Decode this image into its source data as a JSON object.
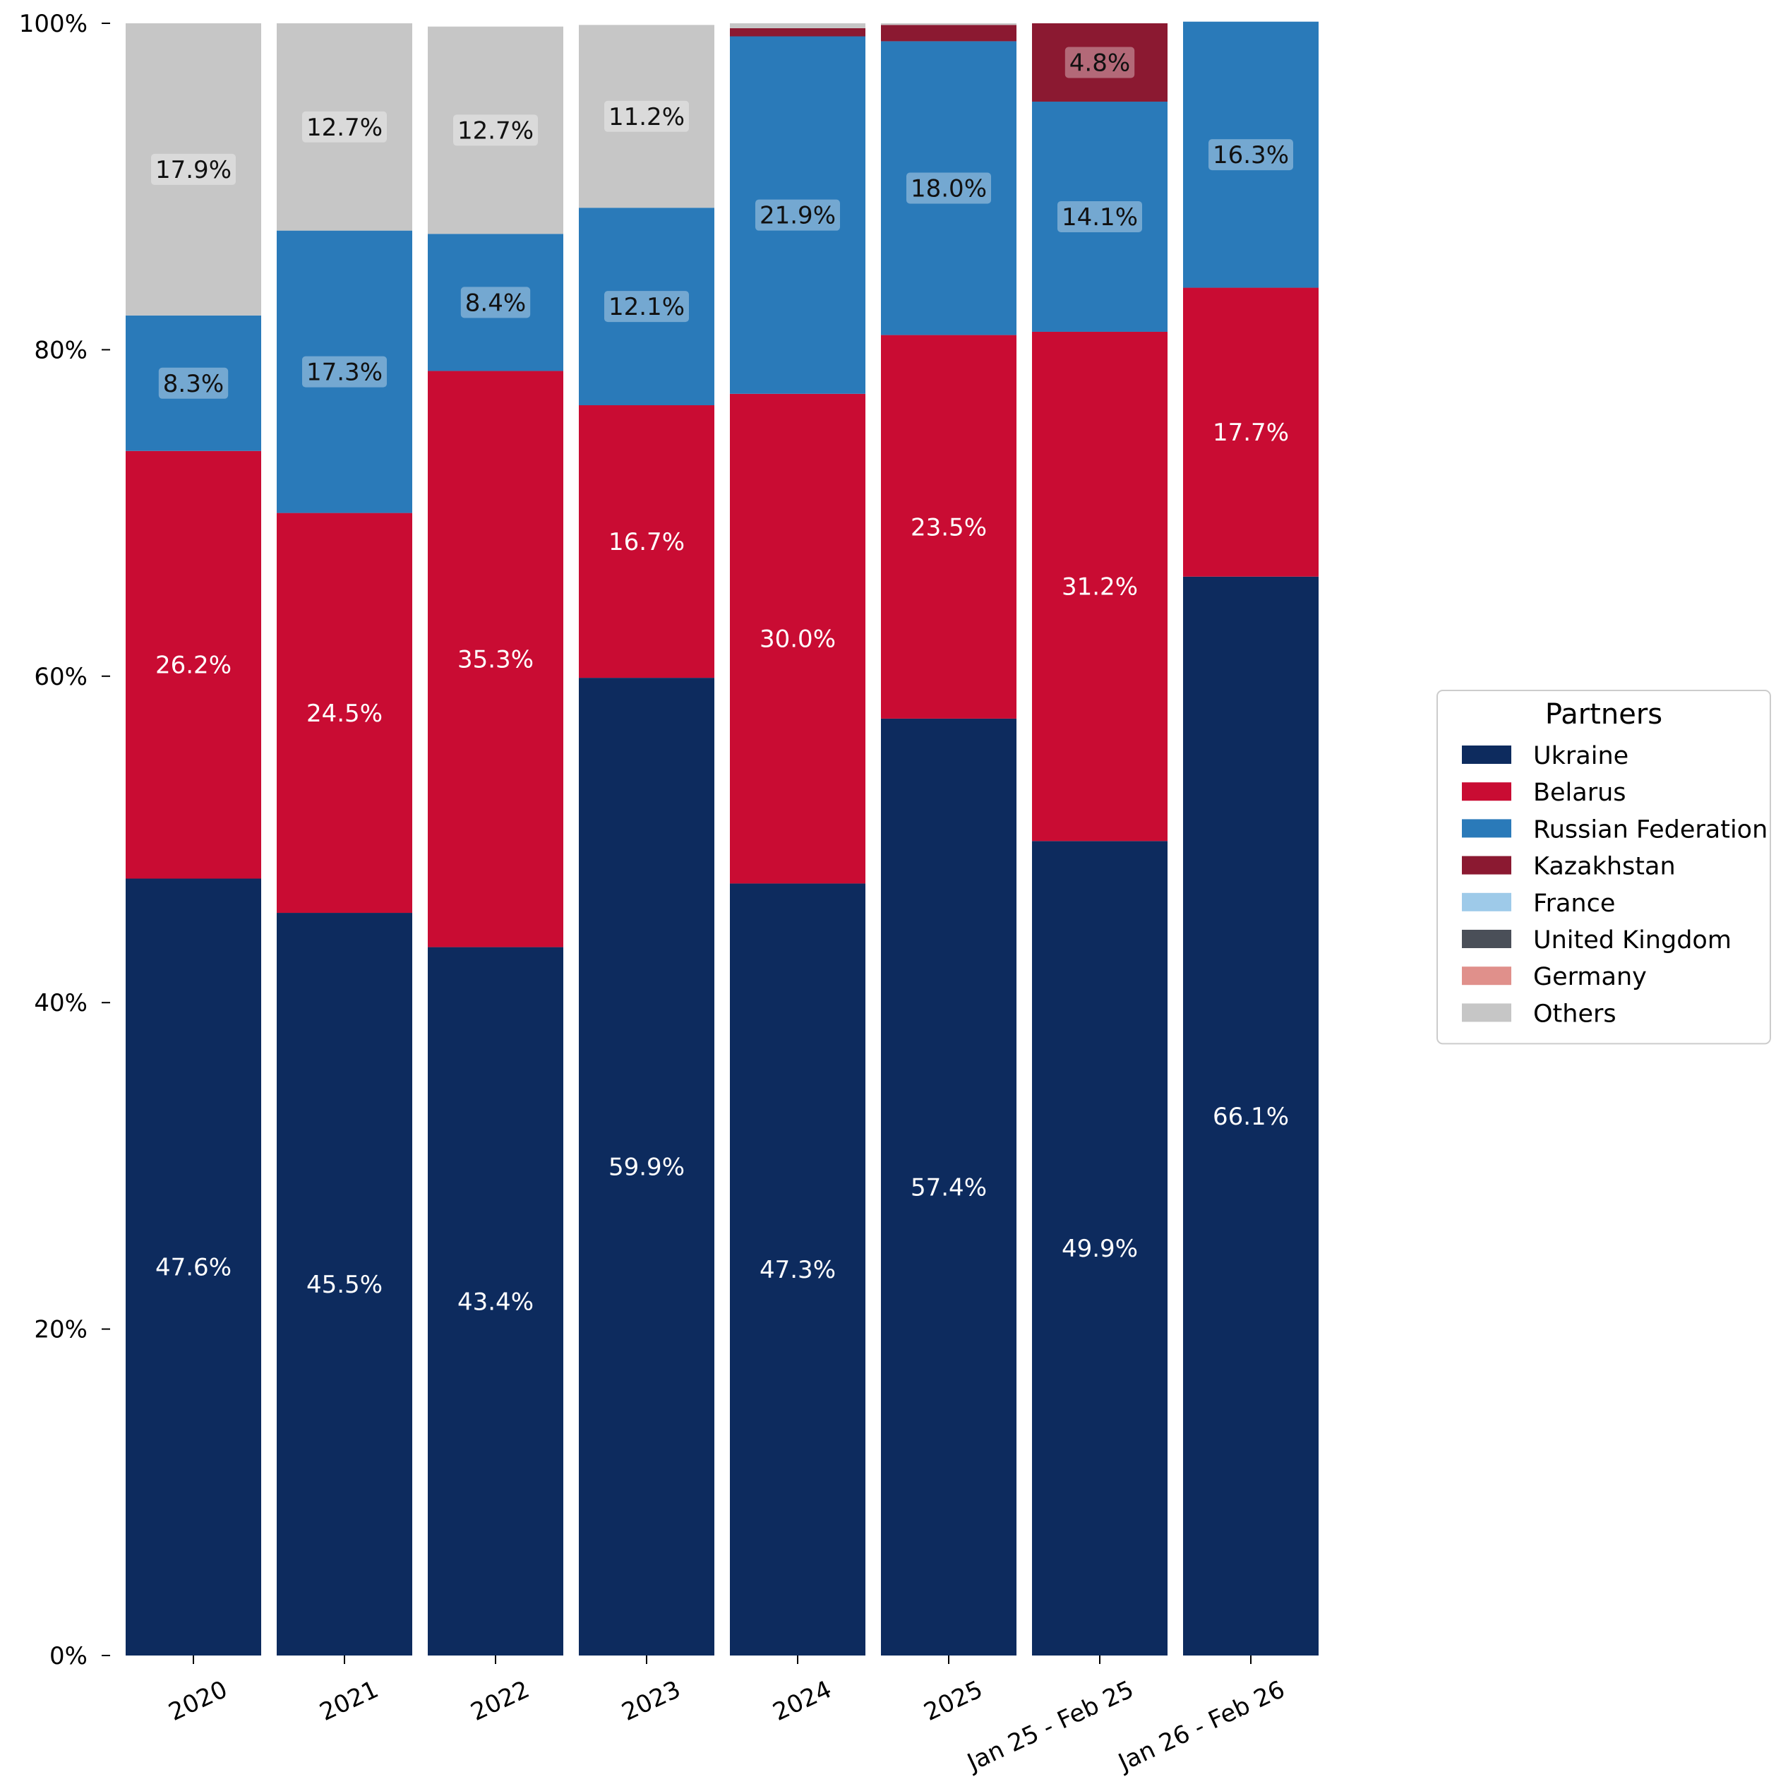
{
  "chart_data": {
    "type": "bar",
    "stacked": true,
    "normalized": true,
    "categories": [
      "2020",
      "2021",
      "2022",
      "2023",
      "2024",
      "2025",
      "Jan 25 - Feb 25",
      "Jan 26 - Feb 26"
    ],
    "yticks": [
      "0%",
      "20%",
      "40%",
      "60%",
      "80%",
      "100%"
    ],
    "ylim": [
      0,
      100
    ],
    "grid": false,
    "legend": {
      "title": "Partners",
      "placement": "right"
    },
    "series": [
      {
        "name": "Ukraine",
        "color": "#0d2b5e",
        "label_color": "#ffffff",
        "label_box": false,
        "values": [
          47.6,
          45.5,
          43.4,
          59.9,
          47.3,
          57.4,
          49.9,
          66.1
        ],
        "labels": [
          "47.6%",
          "45.5%",
          "43.4%",
          "59.9%",
          "47.3%",
          "57.4%",
          "49.9%",
          "66.1%"
        ]
      },
      {
        "name": "Belarus",
        "color": "#c90c33",
        "label_color": "#ffffff",
        "label_box": false,
        "values": [
          26.2,
          24.5,
          35.3,
          16.7,
          30.0,
          23.5,
          31.2,
          17.7
        ],
        "labels": [
          "26.2%",
          "24.5%",
          "35.3%",
          "16.7%",
          "30.0%",
          "23.5%",
          "31.2%",
          "17.7%"
        ]
      },
      {
        "name": "Russian Federation",
        "color": "#2a7ab9",
        "label_color": "#111111",
        "label_box": true,
        "values": [
          8.3,
          17.3,
          8.4,
          12.1,
          21.9,
          18.0,
          14.1,
          16.3
        ],
        "labels": [
          "8.3%",
          "17.3%",
          "8.4%",
          "12.1%",
          "21.9%",
          "18.0%",
          "14.1%",
          "16.3%"
        ]
      },
      {
        "name": "Kazakhstan",
        "color": "#8b1931",
        "label_color": "#111111",
        "label_box": true,
        "values": [
          0,
          0,
          0,
          0,
          0.5,
          1.0,
          4.8,
          0
        ],
        "labels": [
          "",
          "",
          "",
          "",
          "",
          "",
          "4.8%",
          ""
        ]
      },
      {
        "name": "France",
        "color": "#9ecae9",
        "label_color": "#111111",
        "label_box": true,
        "values": [
          0,
          0,
          0,
          0,
          0,
          0,
          0,
          0
        ],
        "labels": [
          "",
          "",
          "",
          "",
          "",
          "",
          "",
          ""
        ]
      },
      {
        "name": "United Kingdom",
        "color": "#4a4f58",
        "label_color": "#ffffff",
        "label_box": false,
        "values": [
          0,
          0,
          0,
          0,
          0,
          0,
          0,
          0
        ],
        "labels": [
          "",
          "",
          "",
          "",
          "",
          "",
          "",
          ""
        ]
      },
      {
        "name": "Germany",
        "color": "#e0908b",
        "label_color": "#111111",
        "label_box": true,
        "values": [
          0,
          0,
          0,
          0,
          0,
          0,
          0,
          0
        ],
        "labels": [
          "",
          "",
          "",
          "",
          "",
          "",
          "",
          ""
        ]
      },
      {
        "name": "Others",
        "color": "#c6c6c6",
        "label_color": "#111111",
        "label_box": true,
        "values": [
          17.9,
          12.7,
          12.7,
          11.2,
          0.3,
          0.1,
          0,
          0
        ],
        "labels": [
          "17.9%",
          "12.7%",
          "12.7%",
          "11.2%",
          "",
          "",
          "",
          ""
        ]
      }
    ]
  }
}
